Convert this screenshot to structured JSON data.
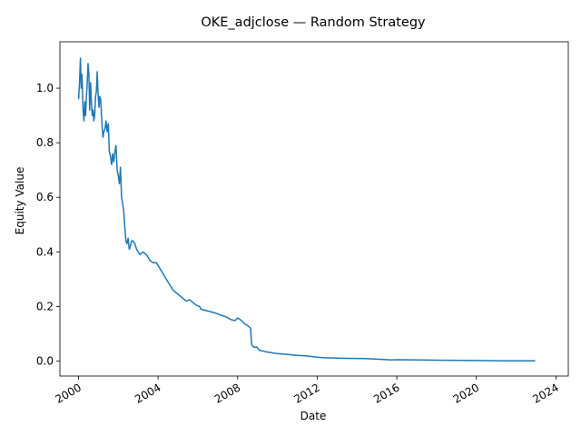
{
  "chart_data": {
    "type": "line",
    "title": "OKE_adjclose — Random Strategy",
    "xlabel": "Date",
    "ylabel": "Equity Value",
    "x_ticks": [
      "2000",
      "2004",
      "2008",
      "2012",
      "2016",
      "2020",
      "2024"
    ],
    "y_ticks": [
      "0.0",
      "0.2",
      "0.4",
      "0.6",
      "0.8",
      "1.0"
    ],
    "xlim": [
      "1999-01-25",
      "2024-08-15"
    ],
    "ylim": [
      -0.055,
      1.17
    ],
    "grid": false,
    "legend": "none",
    "series": [
      {
        "color": "#1f77b4",
        "points": [
          [
            "2000-01-03",
            0.96
          ],
          [
            "2000-01-20",
            1.02
          ],
          [
            "2000-02-05",
            1.11
          ],
          [
            "2000-02-20",
            1.0
          ],
          [
            "2000-03-05",
            1.05
          ],
          [
            "2000-03-25",
            0.92
          ],
          [
            "2000-04-10",
            0.88
          ],
          [
            "2000-04-25",
            0.95
          ],
          [
            "2000-05-10",
            0.9
          ],
          [
            "2000-05-25",
            0.97
          ],
          [
            "2000-06-10",
            1.02
          ],
          [
            "2000-06-25",
            1.09
          ],
          [
            "2000-07-10",
            1.05
          ],
          [
            "2000-07-25",
            0.92
          ],
          [
            "2000-08-10",
            1.02
          ],
          [
            "2000-08-25",
            0.95
          ],
          [
            "2000-09-10",
            0.9
          ],
          [
            "2000-09-25",
            0.92
          ],
          [
            "2000-10-10",
            0.88
          ],
          [
            "2000-10-25",
            0.9
          ],
          [
            "2000-11-10",
            0.97
          ],
          [
            "2000-11-25",
            0.99
          ],
          [
            "2000-12-10",
            1.06
          ],
          [
            "2000-12-25",
            0.98
          ],
          [
            "2001-01-10",
            0.93
          ],
          [
            "2001-01-25",
            0.97
          ],
          [
            "2001-02-10",
            0.96
          ],
          [
            "2001-02-25",
            0.91
          ],
          [
            "2001-03-10",
            0.86
          ],
          [
            "2001-03-25",
            0.82
          ],
          [
            "2001-04-10",
            0.84
          ],
          [
            "2001-05-01",
            0.85
          ],
          [
            "2001-05-20",
            0.88
          ],
          [
            "2001-06-10",
            0.84
          ],
          [
            "2001-07-01",
            0.87
          ],
          [
            "2001-07-20",
            0.77
          ],
          [
            "2001-08-10",
            0.75
          ],
          [
            "2001-09-01",
            0.72
          ],
          [
            "2001-09-20",
            0.76
          ],
          [
            "2001-10-10",
            0.73
          ],
          [
            "2001-11-01",
            0.77
          ],
          [
            "2001-11-20",
            0.79
          ],
          [
            "2001-12-10",
            0.7
          ],
          [
            "2002-01-01",
            0.68
          ],
          [
            "2002-01-20",
            0.65
          ],
          [
            "2002-02-10",
            0.71
          ],
          [
            "2002-03-01",
            0.6
          ],
          [
            "2002-03-20",
            0.58
          ],
          [
            "2002-04-10",
            0.55
          ],
          [
            "2002-05-01",
            0.49
          ],
          [
            "2002-05-20",
            0.44
          ],
          [
            "2002-06-10",
            0.43
          ],
          [
            "2002-07-01",
            0.45
          ],
          [
            "2002-07-20",
            0.41
          ],
          [
            "2002-08-10",
            0.42
          ],
          [
            "2002-09-01",
            0.44
          ],
          [
            "2002-10-01",
            0.44
          ],
          [
            "2002-11-01",
            0.43
          ],
          [
            "2002-12-01",
            0.41
          ],
          [
            "2003-01-01",
            0.4
          ],
          [
            "2003-02-01",
            0.39
          ],
          [
            "2003-04-01",
            0.4
          ],
          [
            "2003-06-01",
            0.39
          ],
          [
            "2003-08-01",
            0.37
          ],
          [
            "2003-10-01",
            0.36
          ],
          [
            "2003-12-01",
            0.36
          ],
          [
            "2004-02-01",
            0.34
          ],
          [
            "2004-04-01",
            0.32
          ],
          [
            "2004-06-01",
            0.3
          ],
          [
            "2004-08-01",
            0.28
          ],
          [
            "2004-10-01",
            0.26
          ],
          [
            "2004-12-01",
            0.25
          ],
          [
            "2005-02-01",
            0.24
          ],
          [
            "2005-04-01",
            0.23
          ],
          [
            "2005-06-01",
            0.22
          ],
          [
            "2005-08-01",
            0.225
          ],
          [
            "2005-10-01",
            0.215
          ],
          [
            "2005-12-01",
            0.205
          ],
          [
            "2006-02-01",
            0.2
          ],
          [
            "2006-03-01",
            0.19
          ],
          [
            "2006-06-01",
            0.185
          ],
          [
            "2006-09-01",
            0.18
          ],
          [
            "2006-12-01",
            0.175
          ],
          [
            "2007-03-01",
            0.168
          ],
          [
            "2007-06-01",
            0.162
          ],
          [
            "2007-09-01",
            0.152
          ],
          [
            "2007-11-15",
            0.148
          ],
          [
            "2008-01-01",
            0.158
          ],
          [
            "2008-03-01",
            0.15
          ],
          [
            "2008-05-01",
            0.138
          ],
          [
            "2008-07-01",
            0.13
          ],
          [
            "2008-08-01",
            0.125
          ],
          [
            "2008-08-25",
            0.12
          ],
          [
            "2008-09-01",
            0.1
          ],
          [
            "2008-09-15",
            0.062
          ],
          [
            "2008-10-01",
            0.055
          ],
          [
            "2008-11-01",
            0.05
          ],
          [
            "2008-12-15",
            0.052
          ],
          [
            "2009-02-01",
            0.04
          ],
          [
            "2009-06-01",
            0.034
          ],
          [
            "2009-12-01",
            0.028
          ],
          [
            "2010-06-01",
            0.025
          ],
          [
            "2011-01-01",
            0.021
          ],
          [
            "2011-06-01",
            0.019
          ],
          [
            "2012-01-01",
            0.014
          ],
          [
            "2012-06-01",
            0.012
          ],
          [
            "2013-06-01",
            0.01
          ],
          [
            "2014-06-01",
            0.009
          ],
          [
            "2015-01-01",
            0.007
          ],
          [
            "2015-10-01",
            0.004
          ],
          [
            "2016-01-01",
            0.005
          ],
          [
            "2017-01-01",
            0.004
          ],
          [
            "2018-06-01",
            0.003
          ],
          [
            "2020-01-01",
            0.002
          ],
          [
            "2021-06-01",
            0.001
          ],
          [
            "2022-12-15",
            0.0005
          ]
        ]
      }
    ]
  }
}
